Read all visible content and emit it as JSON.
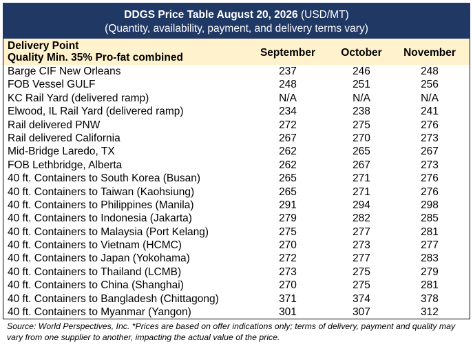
{
  "title": {
    "bold": "DDGS Price Table August 20, 2026",
    "unit": "(USD/MT)",
    "subtitle": "(Quantity, availability, payment, and delivery terms vary)"
  },
  "header": {
    "label1": "Delivery Point",
    "label2": "Quality Min. 35% Pro-fat combined",
    "columns": [
      "September",
      "October",
      "November"
    ]
  },
  "rows": [
    {
      "name": "Barge CIF New Orleans",
      "values": [
        "237",
        "246",
        "248"
      ]
    },
    {
      "name": "FOB Vessel GULF",
      "values": [
        "248",
        "251",
        "256"
      ]
    },
    {
      "name": "KC Rail Yard (delivered ramp)",
      "values": [
        "N/A",
        "N/A",
        "N/A"
      ]
    },
    {
      "name": "Elwood, IL Rail Yard (delivered ramp)",
      "values": [
        "234",
        "238",
        "241"
      ]
    },
    {
      "name": "Rail delivered PNW",
      "values": [
        "272",
        "275",
        "276"
      ]
    },
    {
      "name": "Rail delivered California",
      "values": [
        "267",
        "270",
        "273"
      ]
    },
    {
      "name": "Mid-Bridge Laredo, TX",
      "values": [
        "262",
        "265",
        "267"
      ]
    },
    {
      "name": "FOB Lethbridge, Alberta",
      "values": [
        "262",
        "267",
        "273"
      ]
    },
    {
      "name": "40 ft. Containers to South Korea (Busan)",
      "values": [
        "265",
        "271",
        "276"
      ]
    },
    {
      "name": "40 ft. Containers to Taiwan (Kaohsiung)",
      "values": [
        "265",
        "271",
        "276"
      ]
    },
    {
      "name": "40 ft. Containers to Philippines (Manila)",
      "values": [
        "291",
        "294",
        "298"
      ]
    },
    {
      "name": "40 ft. Containers to Indonesia (Jakarta)",
      "values": [
        "279",
        "282",
        "285"
      ]
    },
    {
      "name": "40 ft. Containers to Malaysia (Port Kelang)",
      "values": [
        "275",
        "277",
        "281"
      ]
    },
    {
      "name": "40 ft. Containers to Vietnam (HCMC)",
      "values": [
        "270",
        "273",
        "277"
      ]
    },
    {
      "name": "40 ft. Containers to Japan (Yokohama)",
      "values": [
        "272",
        "277",
        "283"
      ]
    },
    {
      "name": "40 ft. Containers to Thailand (LCMB)",
      "values": [
        "273",
        "275",
        "279"
      ]
    },
    {
      "name": "40 ft. Containers to China (Shanghai)",
      "values": [
        "270",
        "275",
        "281"
      ]
    },
    {
      "name": "40 ft. Containers to Bangladesh (Chittagong)",
      "values": [
        "371",
        "374",
        "378"
      ]
    },
    {
      "name": "40 ft. Containers to Myanmar (Yangon)",
      "values": [
        "301",
        "307",
        "312"
      ]
    }
  ],
  "footnote": "Source: World Perspectives, Inc. *Prices are based on offer indications only; terms of delivery, payment and quality may vary from one supplier to another, impacting the actual value of the price.",
  "colors": {
    "title_bg": "#1f3864",
    "header_bg": "#fff2cc"
  }
}
